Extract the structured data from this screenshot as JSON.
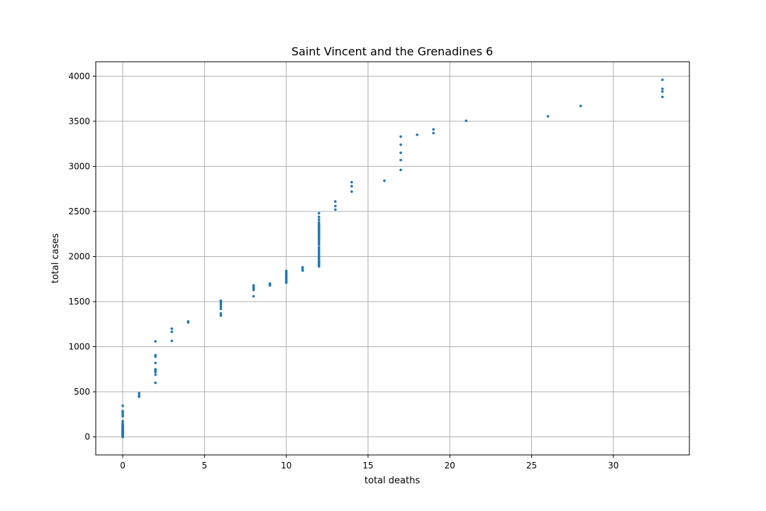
{
  "chart_data": {
    "type": "scatter",
    "title": "Saint Vincent and the Grenadines 6",
    "xlabel": "total deaths",
    "ylabel": "total cases",
    "xlim": [
      -1.65,
      34.65
    ],
    "ylim": [
      -200,
      4160
    ],
    "xticks": [
      0,
      5,
      10,
      15,
      20,
      25,
      30
    ],
    "yticks": [
      0,
      500,
      1000,
      1500,
      2000,
      2500,
      3000,
      3500,
      4000
    ],
    "grid": true,
    "color": "#1f77b4",
    "points": [
      [
        0,
        0
      ],
      [
        0,
        5
      ],
      [
        0,
        10
      ],
      [
        0,
        15
      ],
      [
        0,
        20
      ],
      [
        0,
        25
      ],
      [
        0,
        30
      ],
      [
        0,
        35
      ],
      [
        0,
        40
      ],
      [
        0,
        45
      ],
      [
        0,
        50
      ],
      [
        0,
        55
      ],
      [
        0,
        60
      ],
      [
        0,
        65
      ],
      [
        0,
        70
      ],
      [
        0,
        75
      ],
      [
        0,
        80
      ],
      [
        0,
        85
      ],
      [
        0,
        90
      ],
      [
        0,
        95
      ],
      [
        0,
        100
      ],
      [
        0,
        105
      ],
      [
        0,
        110
      ],
      [
        0,
        115
      ],
      [
        0,
        120
      ],
      [
        0,
        125
      ],
      [
        0,
        130
      ],
      [
        0,
        140
      ],
      [
        0,
        150
      ],
      [
        0,
        175
      ],
      [
        0,
        230
      ],
      [
        0,
        250
      ],
      [
        0,
        270
      ],
      [
        0,
        285
      ],
      [
        0,
        345
      ],
      [
        1,
        445
      ],
      [
        1,
        460
      ],
      [
        1,
        485
      ],
      [
        2,
        600
      ],
      [
        2,
        690
      ],
      [
        2,
        720
      ],
      [
        2,
        735
      ],
      [
        2,
        750
      ],
      [
        2,
        820
      ],
      [
        2,
        890
      ],
      [
        2,
        905
      ],
      [
        2,
        1060
      ],
      [
        3,
        1065
      ],
      [
        3,
        1165
      ],
      [
        3,
        1200
      ],
      [
        4,
        1270
      ],
      [
        4,
        1280
      ],
      [
        6,
        1345
      ],
      [
        6,
        1370
      ],
      [
        6,
        1420
      ],
      [
        6,
        1445
      ],
      [
        6,
        1470
      ],
      [
        6,
        1490
      ],
      [
        6,
        1510
      ],
      [
        8,
        1560
      ],
      [
        8,
        1630
      ],
      [
        8,
        1650
      ],
      [
        8,
        1670
      ],
      [
        8,
        1680
      ],
      [
        9,
        1680
      ],
      [
        9,
        1690
      ],
      [
        9,
        1700
      ],
      [
        10,
        1710
      ],
      [
        10,
        1720
      ],
      [
        10,
        1735
      ],
      [
        10,
        1750
      ],
      [
        10,
        1765
      ],
      [
        10,
        1780
      ],
      [
        10,
        1795
      ],
      [
        10,
        1810
      ],
      [
        10,
        1825
      ],
      [
        10,
        1840
      ],
      [
        11,
        1845
      ],
      [
        11,
        1860
      ],
      [
        11,
        1880
      ],
      [
        12,
        1890
      ],
      [
        12,
        1905
      ],
      [
        12,
        1920
      ],
      [
        12,
        1935
      ],
      [
        12,
        1950
      ],
      [
        12,
        1965
      ],
      [
        12,
        1985
      ],
      [
        12,
        2000
      ],
      [
        12,
        2020
      ],
      [
        12,
        2040
      ],
      [
        12,
        2060
      ],
      [
        12,
        2080
      ],
      [
        12,
        2100
      ],
      [
        12,
        2130
      ],
      [
        12,
        2150
      ],
      [
        12,
        2170
      ],
      [
        12,
        2190
      ],
      [
        12,
        2205
      ],
      [
        12,
        2220
      ],
      [
        12,
        2235
      ],
      [
        12,
        2250
      ],
      [
        12,
        2265
      ],
      [
        12,
        2280
      ],
      [
        12,
        2295
      ],
      [
        12,
        2310
      ],
      [
        12,
        2325
      ],
      [
        12,
        2340
      ],
      [
        12,
        2360
      ],
      [
        12,
        2380
      ],
      [
        12,
        2410
      ],
      [
        12,
        2440
      ],
      [
        12,
        2480
      ],
      [
        13,
        2520
      ],
      [
        13,
        2560
      ],
      [
        13,
        2610
      ],
      [
        14,
        2720
      ],
      [
        14,
        2780
      ],
      [
        14,
        2825
      ],
      [
        16,
        2840
      ],
      [
        17,
        2960
      ],
      [
        17,
        3070
      ],
      [
        17,
        3150
      ],
      [
        17,
        3240
      ],
      [
        17,
        3330
      ],
      [
        18,
        3350
      ],
      [
        19,
        3370
      ],
      [
        19,
        3410
      ],
      [
        21,
        3505
      ],
      [
        26,
        3555
      ],
      [
        28,
        3670
      ],
      [
        33,
        3770
      ],
      [
        33,
        3830
      ],
      [
        33,
        3860
      ],
      [
        33,
        3960
      ]
    ]
  }
}
